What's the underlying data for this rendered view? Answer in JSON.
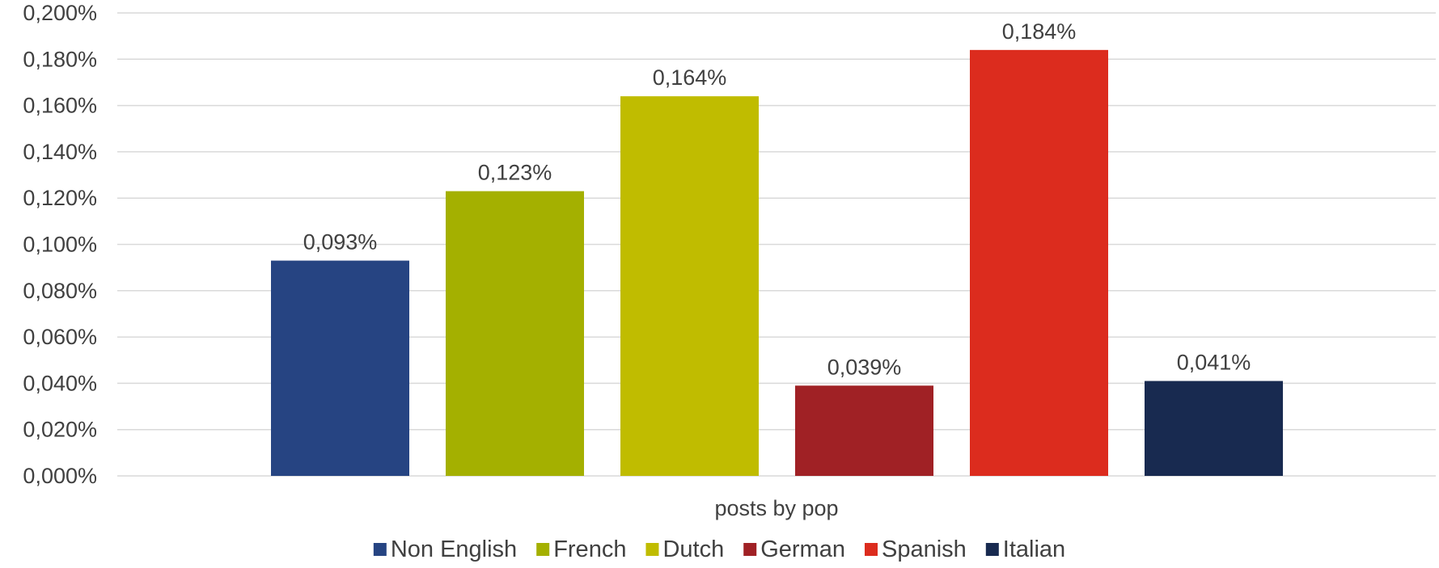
{
  "chart_data": {
    "type": "bar",
    "categories": [
      "posts by pop"
    ],
    "series": [
      {
        "name": "Non English",
        "values": [
          0.093
        ],
        "label": "0,093%",
        "color": "#264482"
      },
      {
        "name": "French",
        "values": [
          0.123
        ],
        "label": "0,123%",
        "color": "#a4b000"
      },
      {
        "name": "Dutch",
        "values": [
          0.164
        ],
        "label": "0,164%",
        "color": "#c0bc00"
      },
      {
        "name": "German",
        "values": [
          0.039
        ],
        "label": "0,039%",
        "color": "#a02125"
      },
      {
        "name": "Spanish",
        "values": [
          0.184
        ],
        "label": "0,184%",
        "color": "#dc2c1e"
      },
      {
        "name": "Italian",
        "values": [
          0.041
        ],
        "label": "0,041%",
        "color": "#182a50"
      }
    ],
    "xlabel": "",
    "ylabel": "",
    "ylim": [
      0,
      0.2
    ],
    "y_ticks": [
      {
        "value": 0.0,
        "label": "0,000%"
      },
      {
        "value": 0.02,
        "label": "0,020%"
      },
      {
        "value": 0.04,
        "label": "0,040%"
      },
      {
        "value": 0.06,
        "label": "0,060%"
      },
      {
        "value": 0.08,
        "label": "0,080%"
      },
      {
        "value": 0.1,
        "label": "0,100%"
      },
      {
        "value": 0.12,
        "label": "0,120%"
      },
      {
        "value": 0.14,
        "label": "0,140%"
      },
      {
        "value": 0.16,
        "label": "0,160%"
      },
      {
        "value": 0.18,
        "label": "0,180%"
      },
      {
        "value": 0.2,
        "label": "0,200%"
      }
    ],
    "grid": true,
    "legend_position": "bottom"
  }
}
